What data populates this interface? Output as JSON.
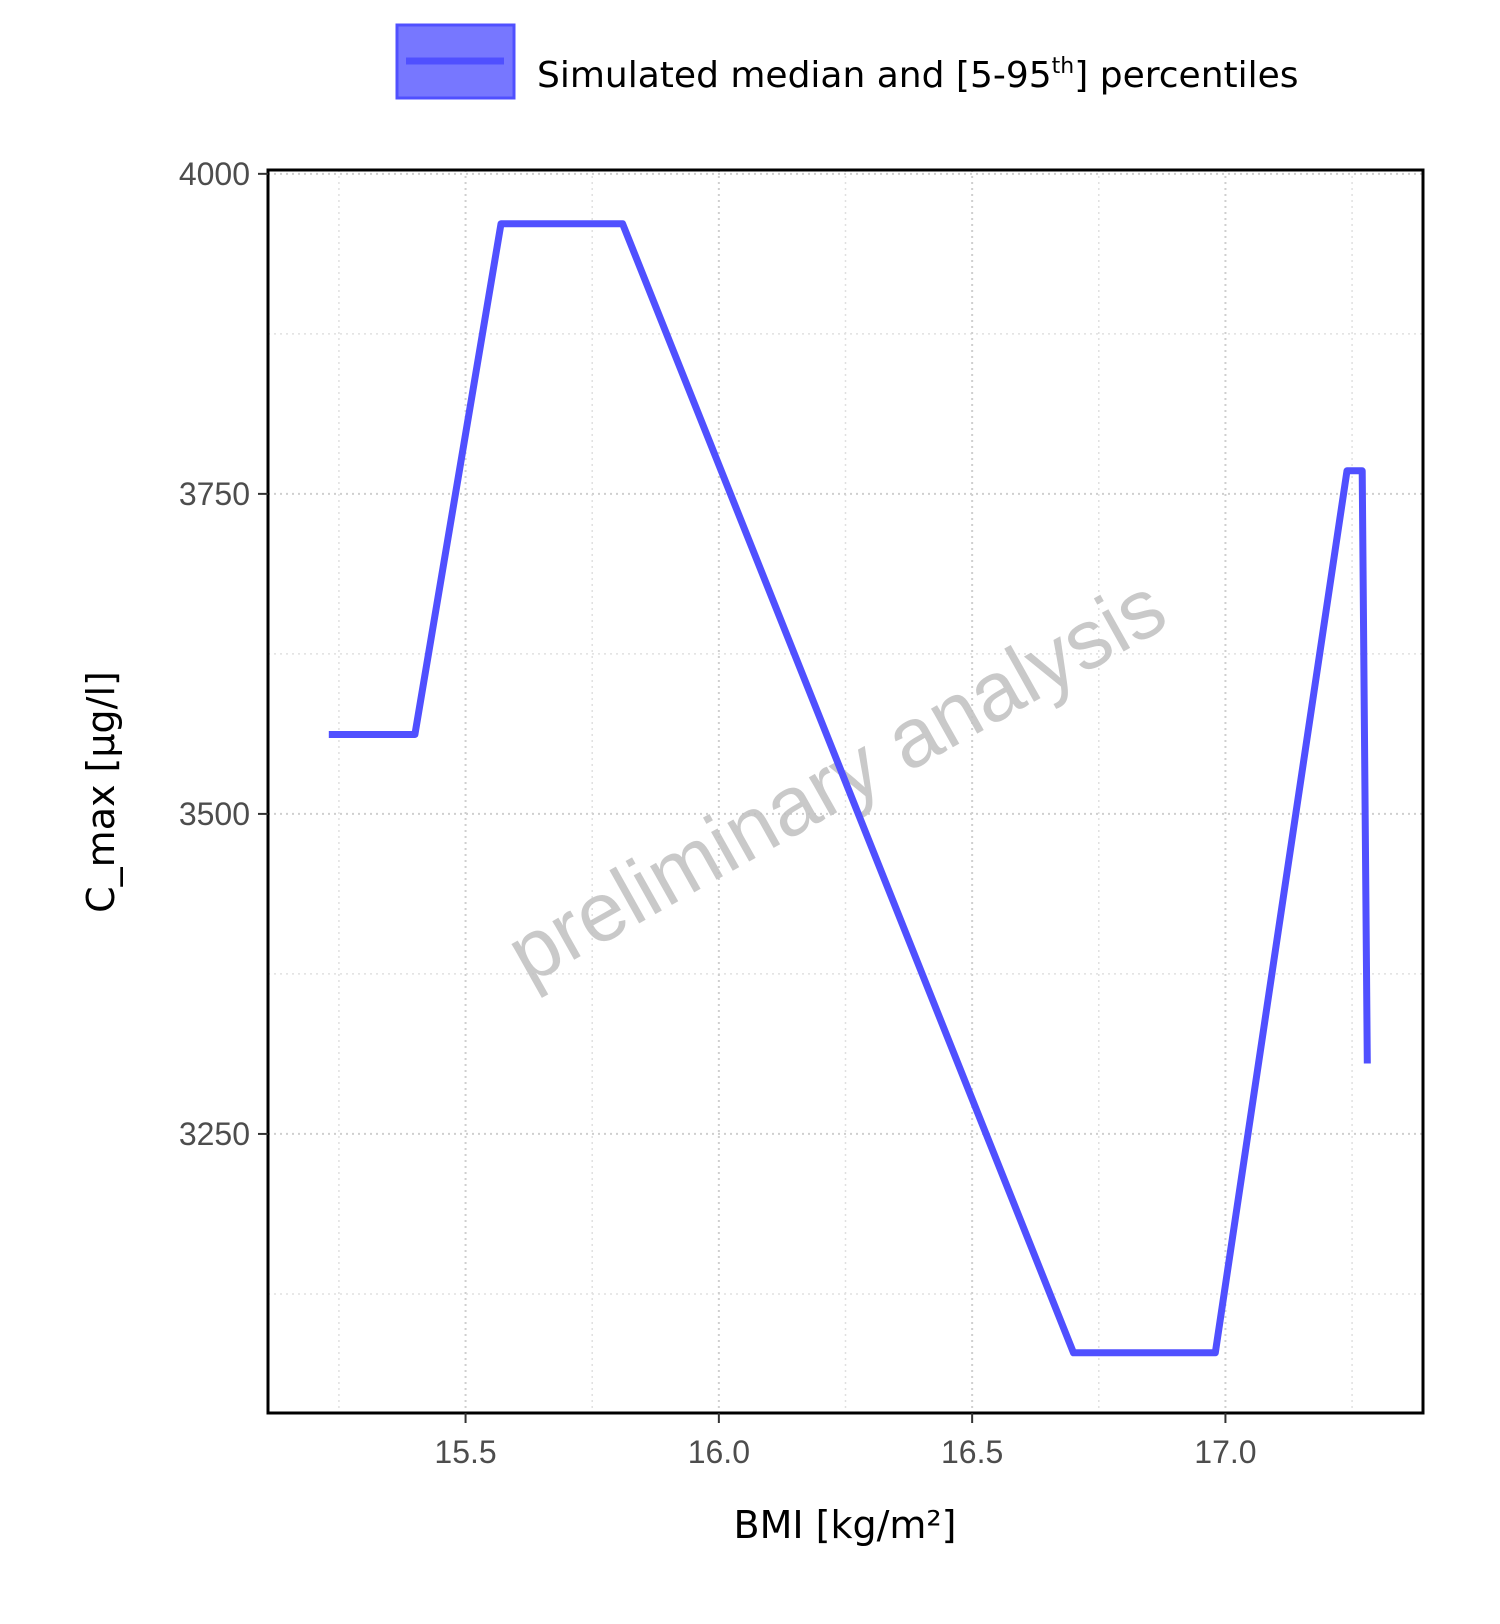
{
  "chart_data": {
    "type": "line",
    "legend": {
      "label_prefix": "Simulated median and [5-95",
      "label_sup": "th",
      "label_suffix": "] percentiles",
      "placement": "top"
    },
    "xlabel": "BMI [kg/m²]",
    "ylabel": "C_max [µg/l]",
    "xlim": [
      15.11,
      17.39
    ],
    "ylim": [
      3032,
      4003
    ],
    "x_ticks": [
      15.5,
      16.0,
      16.5,
      17.0
    ],
    "x_tick_labels": [
      "15.5",
      "16.0",
      "16.5",
      "17.0"
    ],
    "y_ticks": [
      3250,
      3500,
      3750,
      4000
    ],
    "y_tick_labels": [
      "3250",
      "3500",
      "3750",
      "4000"
    ],
    "grid": true,
    "watermark": "preliminary analysis",
    "series": [
      {
        "color": "#5050ff",
        "band_color": "#7777ff",
        "points": [
          {
            "x": 15.23,
            "y": 3562
          },
          {
            "x": 15.4,
            "y": 3562
          },
          {
            "x": 15.57,
            "y": 3961
          },
          {
            "x": 15.81,
            "y": 3961
          },
          {
            "x": 16.7,
            "y": 3079
          },
          {
            "x": 16.98,
            "y": 3079
          },
          {
            "x": 17.24,
            "y": 3768
          },
          {
            "x": 17.27,
            "y": 3768
          },
          {
            "x": 17.28,
            "y": 3305
          }
        ]
      }
    ]
  }
}
